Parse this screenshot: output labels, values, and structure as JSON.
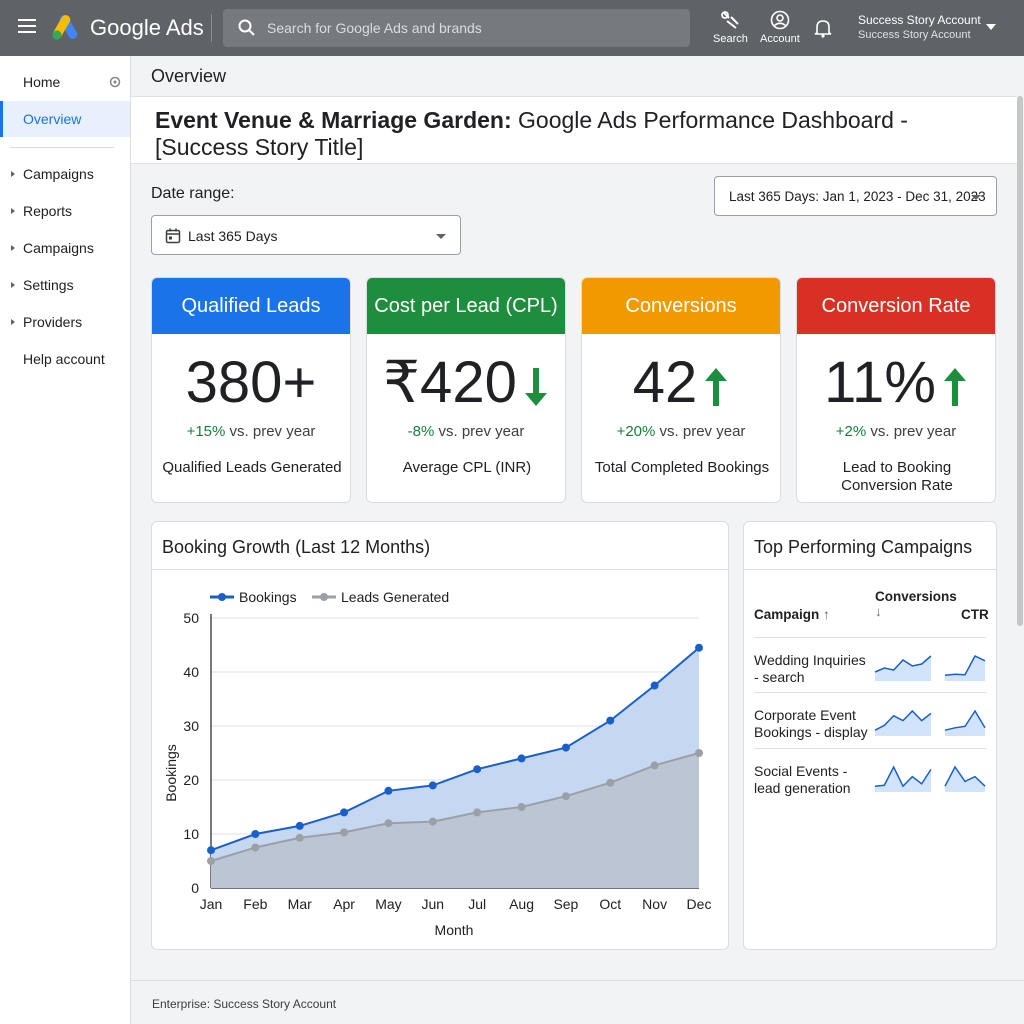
{
  "topbar": {
    "brand": "Google Ads",
    "search_placeholder": "Search for Google Ads and brands",
    "search_btn_label": "Search",
    "account_btn_label": "Account",
    "account_name": "Success Story Account",
    "account_sub": "Success Story Account"
  },
  "sidebar": {
    "home": "Home",
    "items": [
      "Overview",
      "Campaigns",
      "Reports",
      "Campaigns",
      "Settings",
      "Providers",
      "Help account"
    ]
  },
  "main": {
    "page_title": "Overview",
    "hero_title_bold": "Event Venue & Marriage Garden:",
    "hero_title_rest": " Google Ads Performance Dashboard - [Success Story Title]",
    "date_label": "Date range:",
    "date_value": "Last 365 Days",
    "range_value": "Last 365 Days: Jan 1, 2023 - Dec 31, 2023"
  },
  "kpis": [
    {
      "title": "Qualified Leads",
      "value": "380+",
      "arrow": "",
      "delta_pct": "+15%",
      "delta_text": " vs. prev year",
      "footer": "Qualified Leads Generated",
      "color": "#1a73e8"
    },
    {
      "title": "Cost per Lead (CPL)",
      "value": "₹420",
      "arrow": "down",
      "delta_pct": "-8%",
      "delta_text": " vs. prev year",
      "footer": "Average CPL (INR)",
      "color": "#1e8e3e"
    },
    {
      "title": "Conversions",
      "value": "42",
      "arrow": "up",
      "delta_pct": "+20%",
      "delta_text": " vs. prev year",
      "footer": "Total Completed Bookings",
      "color": "#f29900"
    },
    {
      "title": "Conversion Rate",
      "value": "11%",
      "arrow": "up",
      "delta_pct": "+2%",
      "delta_text": " vs. prev year",
      "footer": "Lead to Booking Conversion Rate",
      "color": "#d93025"
    }
  ],
  "chart_panel_title": "Booking Growth (Last 12 Months)",
  "chart_data": {
    "type": "area",
    "title": "",
    "xlabel": "Month",
    "ylabel": "Bookings",
    "ylim": [
      0,
      50
    ],
    "yticks": [
      0,
      10,
      20,
      30,
      40,
      50
    ],
    "categories": [
      "Jan",
      "Feb",
      "Mar",
      "Apr",
      "May",
      "Jun",
      "Jul",
      "Aug",
      "Sep",
      "Oct",
      "Nov",
      "Dec"
    ],
    "series": [
      {
        "name": "Bookings",
        "color": "#1a5fc9",
        "values": [
          7,
          10,
          11.5,
          14,
          18,
          19,
          22,
          24,
          26,
          31,
          37.5,
          44.5
        ]
      },
      {
        "name": "Leads Generated",
        "color": "#9aa0a6",
        "values": [
          5,
          7.5,
          9.3,
          10.3,
          12,
          12.3,
          14,
          15,
          17,
          19.5,
          22.7,
          25
        ]
      }
    ],
    "grid": true,
    "legend": "top-left"
  },
  "campaigns": {
    "title": "Top Performing Campaigns",
    "col_campaign": "Campaign",
    "col_conversions": "Conversions",
    "col_ctr": "CTR",
    "rows": [
      {
        "name": "Wedding Inquiries - search",
        "conv_trend": [
          2,
          3,
          2.5,
          5,
          3.5,
          4,
          6
        ],
        "ctr_trend": [
          1,
          1.2,
          1.1,
          5,
          4
        ]
      },
      {
        "name": "Corporate Event Bookings - display",
        "conv_trend": [
          1,
          2,
          4,
          3,
          5,
          3,
          4.5
        ],
        "ctr_trend": [
          1,
          1.5,
          1.8,
          5,
          1.5
        ]
      },
      {
        "name": "Social Events - lead generation",
        "conv_trend": [
          1,
          1.2,
          5,
          1,
          3,
          1.5,
          4.5
        ],
        "ctr_trend": [
          1,
          5,
          2,
          3,
          1
        ]
      }
    ]
  },
  "footer": "Enterprise: Success Story Account"
}
